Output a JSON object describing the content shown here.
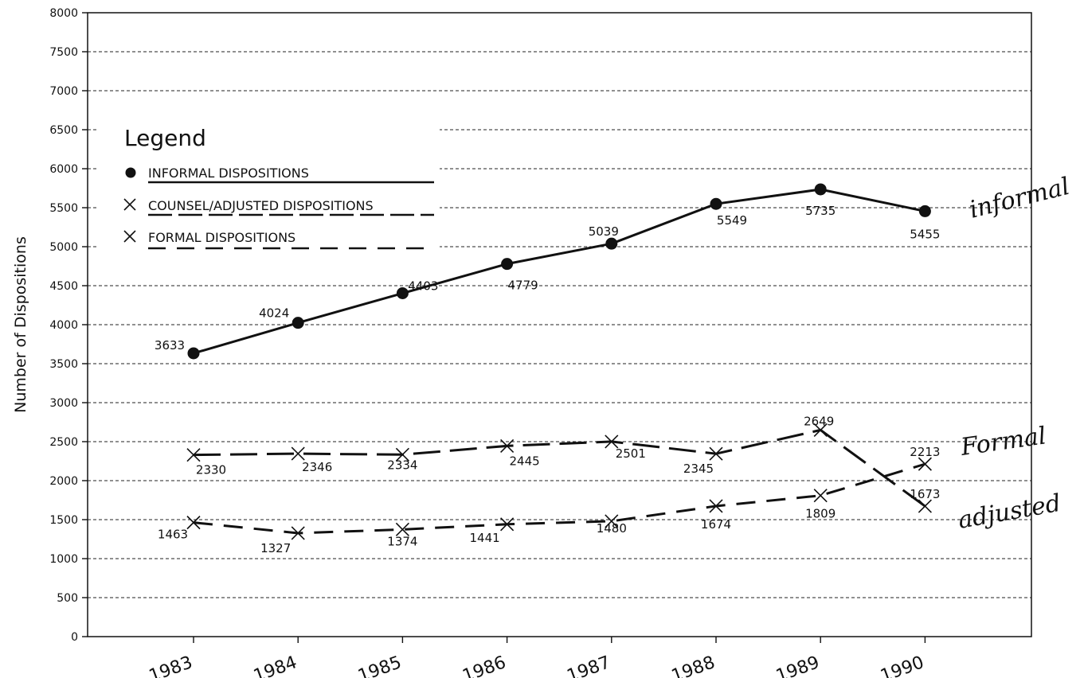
{
  "chart_data": {
    "type": "line",
    "ylabel": "Number of Dispositions",
    "ylim": [
      0,
      8000
    ],
    "yticks": [
      0,
      500,
      1000,
      1500,
      2000,
      2500,
      3000,
      3500,
      4000,
      4500,
      5000,
      5500,
      6000,
      6500,
      7000,
      7500,
      8000
    ],
    "categories": [
      "1983",
      "1984",
      "1985",
      "1986",
      "1987",
      "1988",
      "1989",
      "1990"
    ],
    "grid": "horizontal dashed",
    "legend": {
      "title": "Legend",
      "placement": "top-left",
      "entries": [
        "INFORMAL DISPOSITIONS",
        "COUNSEL/ADJUSTED DISPOSITIONS",
        "FORMAL DISPOSITIONS"
      ]
    },
    "series": [
      {
        "name": "INFORMAL DISPOSITIONS",
        "marker": "circle",
        "style": "solid",
        "values": [
          3633,
          4024,
          4403,
          4779,
          5039,
          5549,
          5735,
          5455
        ]
      },
      {
        "name": "FORMAL DISPOSITIONS",
        "marker": "x",
        "style": "long-dash",
        "values": [
          2330,
          2346,
          2334,
          2445,
          2501,
          2345,
          2649,
          1673
        ]
      },
      {
        "name": "COUNSEL/ADJUSTED DISPOSITIONS",
        "marker": "x",
        "style": "short-dash",
        "values": [
          1463,
          1327,
          1374,
          1441,
          1480,
          1674,
          1809,
          2213
        ]
      }
    ],
    "handwritten_annotations": [
      "informal",
      "Formal",
      "adjusted"
    ]
  }
}
